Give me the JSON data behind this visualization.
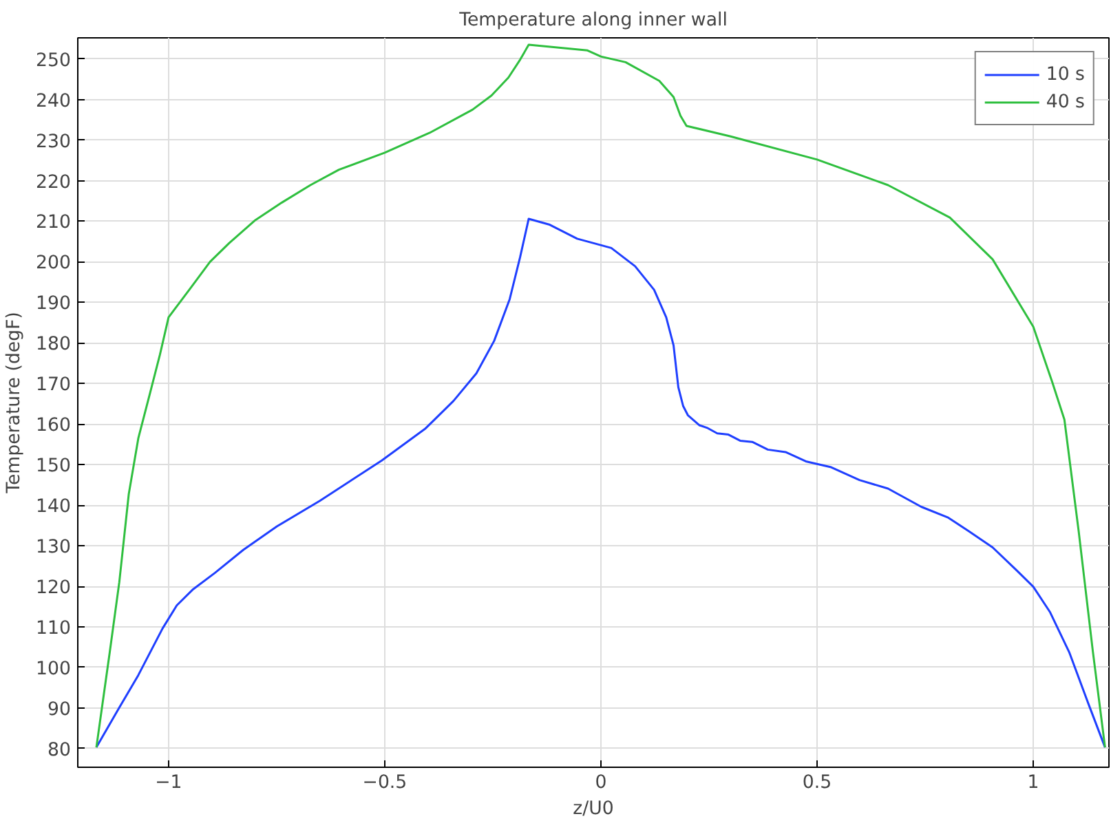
{
  "chart_data": {
    "type": "line",
    "title": "Temperature along inner wall",
    "xlabel": "z/U0",
    "ylabel": "Temperature (degF)",
    "xlim": [
      -1.21,
      1.175
    ],
    "ylim": [
      75.4,
      255.2
    ],
    "xticks": [
      -1,
      -0.5,
      0,
      0.5,
      1
    ],
    "yticks": [
      80,
      90,
      100,
      110,
      120,
      130,
      140,
      150,
      160,
      170,
      180,
      190,
      200,
      210,
      220,
      230,
      240,
      250
    ],
    "grid": true,
    "legend": "top right",
    "line_style": "solid",
    "series": [
      {
        "name": "10 s",
        "color": "#1f3fff",
        "x": [
          -1.167,
          -1.114,
          -1.07,
          -1.014,
          -0.981,
          -0.943,
          -0.893,
          -0.827,
          -0.749,
          -0.65,
          -0.507,
          -0.407,
          -0.383,
          -0.341,
          -0.288,
          -0.247,
          -0.211,
          -0.187,
          -0.167,
          -0.12,
          -0.055,
          0.024,
          0.079,
          0.123,
          0.151,
          0.168,
          0.179,
          0.19,
          0.201,
          0.228,
          0.245,
          0.269,
          0.295,
          0.322,
          0.35,
          0.386,
          0.427,
          0.474,
          0.531,
          0.598,
          0.664,
          0.741,
          0.802,
          0.851,
          0.906,
          0.962,
          1.0,
          1.039,
          1.083,
          1.127,
          1.166
        ],
        "values": [
          80.3,
          90.1,
          98.1,
          109.6,
          115.3,
          119.3,
          123.3,
          129,
          134.8,
          141.1,
          151,
          158.8,
          161.3,
          165.7,
          172.5,
          180.5,
          190.8,
          201.1,
          210.6,
          209.2,
          205.7,
          203.4,
          198.9,
          193.1,
          186.3,
          179.4,
          169.1,
          164.5,
          162.2,
          159.7,
          159.1,
          157.7,
          157.4,
          155.9,
          155.6,
          153.7,
          153.1,
          150.8,
          149.4,
          146.2,
          144.1,
          139.6,
          137,
          133.6,
          129.6,
          123.9,
          119.9,
          113.6,
          103.8,
          91.2,
          80.3
        ]
      },
      {
        "name": "40 s",
        "color": "#2fbf3f",
        "x": [
          -1.167,
          -1.136,
          -1.114,
          -1.092,
          -1.07,
          -1.042,
          -1.02,
          -1.0,
          -0.948,
          -0.904,
          -0.86,
          -0.799,
          -0.738,
          -0.672,
          -0.606,
          -0.5,
          -0.396,
          -0.297,
          -0.253,
          -0.214,
          -0.187,
          -0.167,
          -0.031,
          0.0,
          0.057,
          0.135,
          0.168,
          0.184,
          0.198,
          0.3,
          0.5,
          0.664,
          0.807,
          0.906,
          1.0,
          1.044,
          1.072,
          1.105,
          1.138,
          1.166
        ],
        "values": [
          80.3,
          103.8,
          121,
          142.8,
          156.5,
          168,
          177.1,
          186.3,
          193.7,
          200,
          204.6,
          210.3,
          214.6,
          218.9,
          222.7,
          226.9,
          231.8,
          237.5,
          241,
          245.4,
          249.8,
          253.5,
          252.1,
          250.6,
          249.2,
          244.6,
          240.6,
          236,
          233.5,
          230.9,
          225.2,
          218.9,
          210.9,
          200.6,
          184,
          170.3,
          161.1,
          133.6,
          103.8,
          80.3
        ]
      }
    ]
  }
}
